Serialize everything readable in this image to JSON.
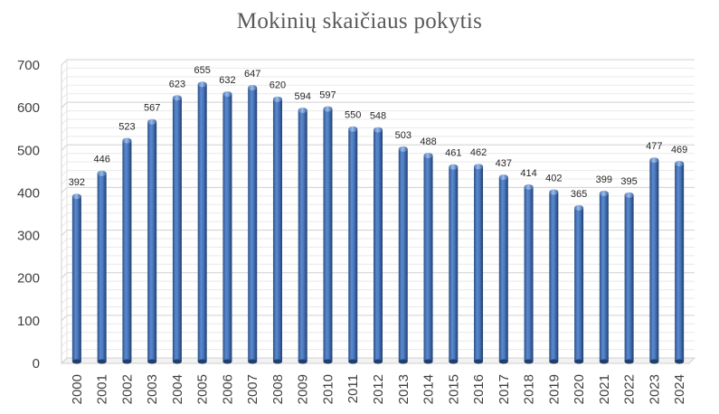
{
  "chart_data": {
    "type": "bar",
    "title": "Mokinių skaičiaus pokytis",
    "xlabel": "",
    "ylabel": "",
    "categories": [
      "2000",
      "2001",
      "2002",
      "2003",
      "2004",
      "2005",
      "2006",
      "2007",
      "2008",
      "2009",
      "2010",
      "2011",
      "2012",
      "2013",
      "2014",
      "2015",
      "2016",
      "2017",
      "2018",
      "2019",
      "2020",
      "2021",
      "2022",
      "2023",
      "2024"
    ],
    "values": [
      392,
      446,
      523,
      567,
      623,
      655,
      632,
      647,
      620,
      594,
      597,
      550,
      548,
      503,
      488,
      461,
      462,
      437,
      414,
      402,
      365,
      399,
      395,
      477,
      469
    ],
    "ylim": [
      0,
      700
    ],
    "yticks": [
      0,
      100,
      200,
      300,
      400,
      500,
      600,
      700
    ],
    "grid": true,
    "bar_color": "#3D6AAE",
    "data_labels": true
  }
}
